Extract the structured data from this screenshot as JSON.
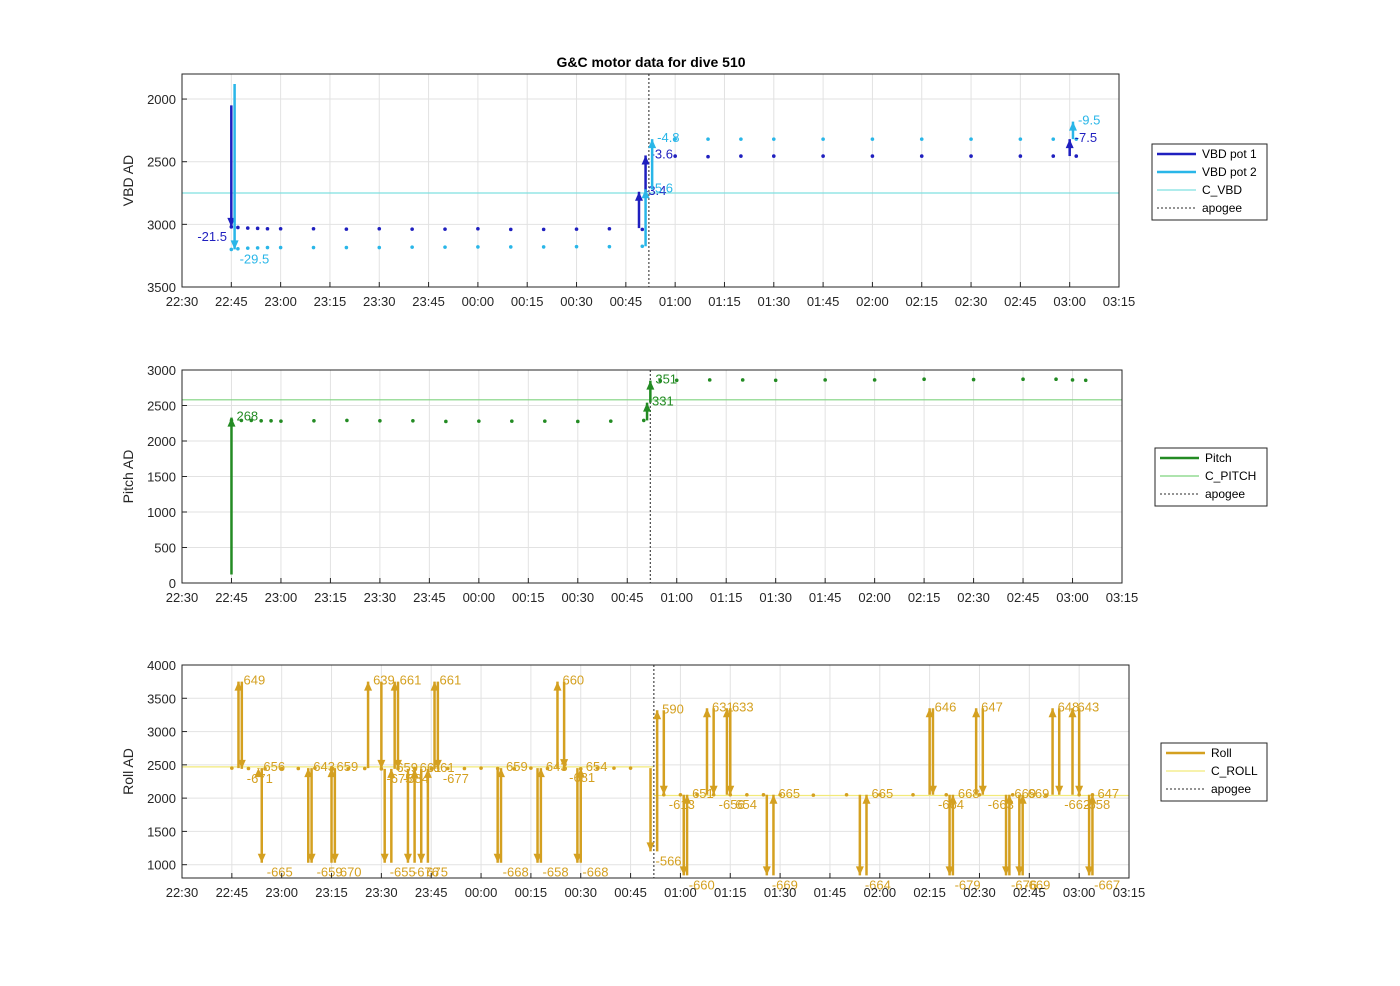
{
  "figure_title": "G&C motor data for dive 510",
  "x_ticks": [
    "22:30",
    "22:45",
    "23:00",
    "23:15",
    "23:30",
    "23:45",
    "00:00",
    "00:15",
    "00:30",
    "00:45",
    "01:00",
    "01:15",
    "01:30",
    "01:45",
    "02:00",
    "02:15",
    "02:30",
    "02:45",
    "03:00",
    "03:15"
  ],
  "apogee_x": "00:52",
  "colors": {
    "vbd1": "#1f1fbf",
    "vbd2": "#29b6e8",
    "c_vbd": "#7fe0e0",
    "pitch": "#238b23",
    "c_pitch": "#7ed37e",
    "roll": "#d4a020",
    "c_roll": "#f2ea7a",
    "apogee": "#555555",
    "grid": "#e2e2e2"
  },
  "chart_data": [
    {
      "type": "line",
      "ylabel": "VBD AD",
      "ylim": [
        1800,
        3500
      ],
      "y_reversed": true,
      "yticks": [
        2000,
        2500,
        3000,
        3500
      ],
      "grid": true,
      "legend_placement": "outside-right",
      "legend": [
        "VBD pot 1",
        "VBD pot 2",
        "C_VBD",
        "apogee"
      ],
      "reference_line": {
        "name": "C_VBD",
        "y": 2750
      },
      "series": [
        {
          "name": "VBD pot 1",
          "x": [
            "22:45",
            "22:47",
            "22:50",
            "22:53",
            "22:56",
            "23:00",
            "23:10",
            "23:20",
            "23:30",
            "23:40",
            "23:50",
            "00:00",
            "00:10",
            "00:20",
            "00:30",
            "00:40",
            "00:50",
            "01:00",
            "01:10",
            "01:20",
            "01:30",
            "01:45",
            "02:00",
            "02:15",
            "02:30",
            "02:45",
            "02:55",
            "03:02"
          ],
          "y": [
            3020,
            3025,
            3030,
            3032,
            3035,
            3035,
            3035,
            3038,
            3035,
            3038,
            3038,
            3035,
            3040,
            3040,
            3038,
            3035,
            3040,
            2455,
            2460,
            2455,
            2455,
            2455,
            2455,
            2455,
            2455,
            2455,
            2455,
            2455
          ]
        },
        {
          "name": "VBD pot 2",
          "x": [
            "22:45",
            "22:47",
            "22:50",
            "22:53",
            "22:56",
            "23:00",
            "23:10",
            "23:20",
            "23:30",
            "23:40",
            "23:50",
            "00:00",
            "00:10",
            "00:20",
            "00:30",
            "00:40",
            "00:50",
            "01:00",
            "01:10",
            "01:20",
            "01:30",
            "01:45",
            "02:00",
            "02:15",
            "02:30",
            "02:45",
            "02:55",
            "03:02"
          ],
          "y": [
            3200,
            3195,
            3190,
            3188,
            3185,
            3185,
            3185,
            3185,
            3185,
            3182,
            3182,
            3180,
            3180,
            3180,
            3178,
            3178,
            3175,
            2320,
            2320,
            2320,
            2320,
            2320,
            2320,
            2320,
            2320,
            2320,
            2320,
            2320
          ]
        }
      ],
      "events": [
        {
          "series": "VBD pot 1",
          "x": "22:45",
          "from": 2050,
          "to": 3020,
          "label": "-21.5"
        },
        {
          "series": "VBD pot 2",
          "x": "22:46",
          "from": 1880,
          "to": 3200,
          "label": "-29.5"
        },
        {
          "series": "VBD pot 1",
          "x": "00:49",
          "from": 3030,
          "to": 2740,
          "label": "-3.4"
        },
        {
          "series": "VBD pot 1",
          "x": "00:51",
          "from": 2740,
          "to": 2450,
          "label": "-3.6"
        },
        {
          "series": "VBD pot 2",
          "x": "00:51",
          "from": 3175,
          "to": 2720,
          "label": "-5.6"
        },
        {
          "series": "VBD pot 2",
          "x": "00:53",
          "from": 2720,
          "to": 2320,
          "label": "-4.8"
        },
        {
          "series": "VBD pot 1",
          "x": "03:00",
          "from": 2455,
          "to": 2320,
          "label": "-7.5"
        },
        {
          "series": "VBD pot 2",
          "x": "03:01",
          "from": 2320,
          "to": 2180,
          "label": "-9.5"
        }
      ]
    },
    {
      "type": "line",
      "ylabel": "Pitch AD",
      "ylim": [
        0,
        3000
      ],
      "yticks": [
        0,
        500,
        1000,
        1500,
        2000,
        2500,
        3000
      ],
      "grid": true,
      "legend_placement": "outside-right",
      "legend": [
        "Pitch",
        "C_PITCH",
        "apogee"
      ],
      "reference_line": {
        "name": "C_PITCH",
        "y": 2580
      },
      "series": [
        {
          "name": "Pitch",
          "x": [
            "22:45",
            "22:48",
            "22:51",
            "22:54",
            "22:57",
            "23:00",
            "23:10",
            "23:20",
            "23:30",
            "23:40",
            "23:50",
            "00:00",
            "00:10",
            "00:20",
            "00:30",
            "00:40",
            "00:50",
            "00:55",
            "01:00",
            "01:10",
            "01:20",
            "01:30",
            "01:45",
            "02:00",
            "02:15",
            "02:30",
            "02:45",
            "02:55",
            "03:00",
            "03:04"
          ],
          "y": [
            2290,
            2290,
            2290,
            2285,
            2285,
            2280,
            2285,
            2290,
            2285,
            2285,
            2275,
            2280,
            2280,
            2280,
            2275,
            2280,
            2290,
            2850,
            2855,
            2860,
            2860,
            2855,
            2860,
            2860,
            2870,
            2865,
            2870,
            2870,
            2860,
            2855
          ]
        }
      ],
      "events": [
        {
          "series": "Pitch",
          "x": "22:45",
          "from": 120,
          "to": 2330,
          "label": "268"
        },
        {
          "series": "Pitch",
          "x": "00:51",
          "from": 2290,
          "to": 2540,
          "label": "331"
        },
        {
          "series": "Pitch",
          "x": "00:52",
          "from": 2540,
          "to": 2850,
          "label": "351"
        }
      ]
    },
    {
      "type": "line",
      "ylabel": "Roll AD",
      "ylim": [
        800,
        4000
      ],
      "yticks": [
        1000,
        1500,
        2000,
        2500,
        3000,
        3500,
        4000
      ],
      "grid": true,
      "legend_placement": "outside-right",
      "legend": [
        "Roll",
        "C_ROLL",
        "apogee"
      ],
      "reference_lines": [
        {
          "name": "C_ROLL",
          "x_range": [
            "22:30",
            "00:52"
          ],
          "y": 2470
        },
        {
          "name": "C_ROLL",
          "x_range": [
            "00:52",
            "03:15"
          ],
          "y": 2040
        }
      ],
      "series": [
        {
          "name": "Roll",
          "x": [
            "22:45",
            "22:50",
            "22:55",
            "23:00",
            "23:05",
            "23:10",
            "23:15",
            "23:20",
            "23:25",
            "23:30",
            "23:35",
            "23:40",
            "23:45",
            "23:50",
            "23:55",
            "00:00",
            "00:05",
            "00:10",
            "00:15",
            "00:20",
            "00:25",
            "00:30",
            "00:35",
            "00:40",
            "00:45",
            "00:55",
            "01:00",
            "01:05",
            "01:10",
            "01:15",
            "01:20",
            "01:25",
            "01:30",
            "01:40",
            "01:50",
            "02:00",
            "02:10",
            "02:20",
            "02:30",
            "02:40",
            "02:50",
            "03:00",
            "03:04"
          ],
          "y": [
            2450,
            2445,
            2440,
            2445,
            2445,
            2450,
            2445,
            2440,
            2445,
            2440,
            2445,
            2445,
            2440,
            2445,
            2445,
            2450,
            2445,
            2440,
            2450,
            2445,
            2445,
            2440,
            2450,
            2450,
            2450,
            2050,
            2050,
            2055,
            2050,
            2050,
            2050,
            2050,
            2050,
            2045,
            2050,
            2050,
            2050,
            2050,
            2050,
            2050,
            2045,
            2050,
            2050
          ]
        }
      ],
      "events": [
        {
          "x": "22:47",
          "from": 2450,
          "to": 3750,
          "label": "649"
        },
        {
          "x": "22:48",
          "from": 3750,
          "to": 2440,
          "label": "-671"
        },
        {
          "x": "22:53",
          "from": 2440,
          "to": 2450,
          "label": "656"
        },
        {
          "x": "22:54",
          "from": 2450,
          "to": 1030,
          "label": "-665"
        },
        {
          "x": "23:08",
          "from": 1030,
          "to": 2450,
          "label": "643"
        },
        {
          "x": "23:09",
          "from": 2450,
          "to": 1030,
          "label": "-659"
        },
        {
          "x": "23:15",
          "from": 1030,
          "to": 2450,
          "label": "659"
        },
        {
          "x": "23:16",
          "from": 2450,
          "to": 1030,
          "label": "670"
        },
        {
          "x": "23:26",
          "from": 2450,
          "to": 3750,
          "label": "639"
        },
        {
          "x": "23:30",
          "from": 3750,
          "to": 2440,
          "label": "-675"
        },
        {
          "x": "23:31",
          "from": 2440,
          "to": 1030,
          "label": "-655"
        },
        {
          "x": "23:33",
          "from": 1030,
          "to": 2440,
          "label": "659"
        },
        {
          "x": "23:34",
          "from": 2440,
          "to": 3750,
          "label": "661"
        },
        {
          "x": "23:35",
          "from": 3750,
          "to": 2440,
          "label": "-684"
        },
        {
          "x": "23:38",
          "from": 2440,
          "to": 1030,
          "label": "-676"
        },
        {
          "x": "23:40",
          "from": 1030,
          "to": 2440,
          "label": "661"
        },
        {
          "x": "23:42",
          "from": 2440,
          "to": 1030,
          "label": "675"
        },
        {
          "x": "23:44",
          "from": 1030,
          "to": 2440,
          "label": "661"
        },
        {
          "x": "23:46",
          "from": 2440,
          "to": 3750,
          "label": "661"
        },
        {
          "x": "23:47",
          "from": 3750,
          "to": 2440,
          "label": "-677"
        },
        {
          "x": "00:05",
          "from": 2440,
          "to": 1030,
          "label": "-668"
        },
        {
          "x": "00:06",
          "from": 1030,
          "to": 2450,
          "label": "659"
        },
        {
          "x": "00:17",
          "from": 2450,
          "to": 1030,
          "label": "-658"
        },
        {
          "x": "00:18",
          "from": 1030,
          "to": 2450,
          "label": "643"
        },
        {
          "x": "00:23",
          "from": 2450,
          "to": 3750,
          "label": "660"
        },
        {
          "x": "00:25",
          "from": 3750,
          "to": 2450,
          "label": "-681"
        },
        {
          "x": "00:29",
          "from": 2450,
          "to": 1030,
          "label": "-668"
        },
        {
          "x": "00:30",
          "from": 1030,
          "to": 2450,
          "label": "654"
        },
        {
          "x": "00:51",
          "from": 2450,
          "to": 1200,
          "label": "-566"
        },
        {
          "x": "00:53",
          "from": 1200,
          "to": 3320,
          "label": "590"
        },
        {
          "x": "00:55",
          "from": 3320,
          "to": 2050,
          "label": "-613"
        },
        {
          "x": "01:01",
          "from": 2050,
          "to": 840,
          "label": "-660"
        },
        {
          "x": "01:02",
          "from": 840,
          "to": 2050,
          "label": "651"
        },
        {
          "x": "01:08",
          "from": 2050,
          "to": 3350,
          "label": "631"
        },
        {
          "x": "01:10",
          "from": 3350,
          "to": 2050,
          "label": "-656"
        },
        {
          "x": "01:14",
          "from": 2050,
          "to": 3350,
          "label": "633"
        },
        {
          "x": "01:15",
          "from": 3350,
          "to": 2050,
          "label": "654"
        },
        {
          "x": "01:26",
          "from": 2050,
          "to": 840,
          "label": "-669"
        },
        {
          "x": "01:28",
          "from": 840,
          "to": 2050,
          "label": "665"
        },
        {
          "x": "01:54",
          "from": 2050,
          "to": 840,
          "label": "-664"
        },
        {
          "x": "01:56",
          "from": 840,
          "to": 2050,
          "label": "665"
        },
        {
          "x": "02:15",
          "from": 2050,
          "to": 3350,
          "label": "646"
        },
        {
          "x": "02:16",
          "from": 3350,
          "to": 2050,
          "label": "-664"
        },
        {
          "x": "02:21",
          "from": 2050,
          "to": 840,
          "label": "-679"
        },
        {
          "x": "02:22",
          "from": 840,
          "to": 2050,
          "label": "668"
        },
        {
          "x": "02:29",
          "from": 2050,
          "to": 3350,
          "label": "647"
        },
        {
          "x": "02:31",
          "from": 3350,
          "to": 2050,
          "label": "-663"
        },
        {
          "x": "02:38",
          "from": 2050,
          "to": 840,
          "label": "-676"
        },
        {
          "x": "02:39",
          "from": 840,
          "to": 2050,
          "label": "669"
        },
        {
          "x": "02:42",
          "from": 2050,
          "to": 840,
          "label": "-669"
        },
        {
          "x": "02:43",
          "from": 840,
          "to": 2050,
          "label": "669"
        },
        {
          "x": "02:52",
          "from": 2050,
          "to": 3350,
          "label": "648"
        },
        {
          "x": "02:54",
          "from": 3350,
          "to": 2050,
          "label": "-662"
        },
        {
          "x": "02:58",
          "from": 2050,
          "to": 3350,
          "label": "643"
        },
        {
          "x": "03:00",
          "from": 3350,
          "to": 2050,
          "label": "-658"
        },
        {
          "x": "03:03",
          "from": 2050,
          "to": 840,
          "label": "-667"
        },
        {
          "x": "03:04",
          "from": 840,
          "to": 2050,
          "label": "647"
        }
      ]
    }
  ]
}
